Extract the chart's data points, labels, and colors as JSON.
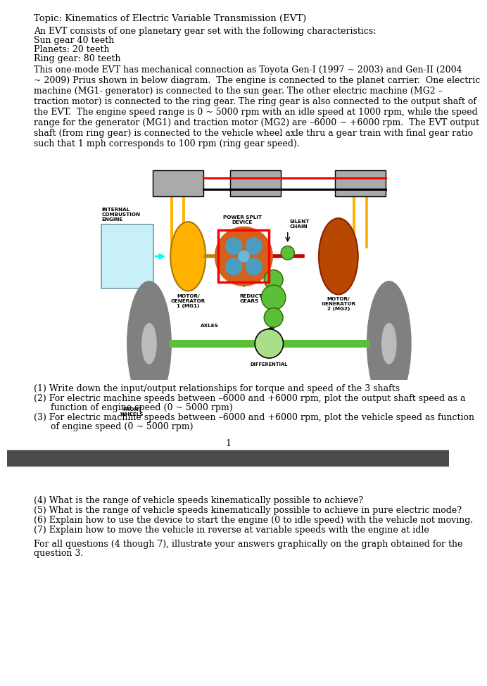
{
  "title": "Topic: Kinematics of Electric Variable Transmission (EVT)",
  "para1_line1": "An EVT consists of one planetary gear set with the following characteristics:",
  "para1_line2": "Sun gear 40 teeth",
  "para1_line3": "Planets: 20 teeth",
  "para1_line4": "Ring gear: 80 teeth",
  "para2": "This one-mode EVT has mechanical connection as Toyota Gen-I (1997 ~ 2003) and Gen-II (2004\n~ 2009) Prius shown in below diagram.  The engine is connected to the planet carrier.  One electric\nmachine (MG1- generator) is connected to the sun gear. The other electric machine (MG2 –\ntraction motor) is connected to the ring gear. The ring gear is also connected to the output shaft of\nthe EVT.  The engine speed range is 0 ~ 5000 rpm with an idle speed at 1000 rpm, while the speed\nrange for the generator (MG1) and traction motor (MG2) are –6000 ~ +6000 rpm.  The EVT output\nshaft (from ring gear) is connected to the vehicle wheel axle thru a gear train with final gear ratio\nsuch that 1 mph corresponds to 100 rpm (ring gear speed).",
  "q1": "(1) Write down the input/output relationships for torque and speed of the 3 shafts",
  "q2a": "(2) For electric machine speeds between –6000 and +6000 rpm, plot the output shaft speed as a",
  "q2b": "      function of engine speed (0 ~ 5000 rpm)",
  "q3a": "(3) For electric machine speeds between –6000 and +6000 rpm, plot the vehicle speed as function",
  "q3b": "      of engine speed (0 ~ 5000 rpm)",
  "page_number": "1",
  "q4": "(4) What is the range of vehicle speeds kinematically possible to achieve?",
  "q5": "(5) What is the range of vehicle speeds kinematically possible to achieve in pure electric mode?",
  "q6": "(6) Explain how to use the device to start the engine (0 to idle speed) with the vehicle not moving.",
  "q7": "(7) Explain how to move the vehicle in reverse at variable speeds with the engine at idle",
  "para_bottom1": "For all questions (4 though 7), illustrate your answers graphically on the graph obtained for the",
  "para_bottom2": "question 3.",
  "bg_color": "#ffffff",
  "separator_color": "#4a4a4a",
  "gold": "#FFB300",
  "orange_dark": "#B84800",
  "orange_mid": "#D4601A",
  "green_bright": "#5CBF3A",
  "gray_wheel": "#808080",
  "gray_box": "#AAAAAA",
  "cyan_box": "#C8F0F8",
  "red_conn": "#CC0000",
  "light_green": "#AADE88",
  "blue_planet": "#4A9DC0",
  "cyan_planet": "#66BBDD"
}
